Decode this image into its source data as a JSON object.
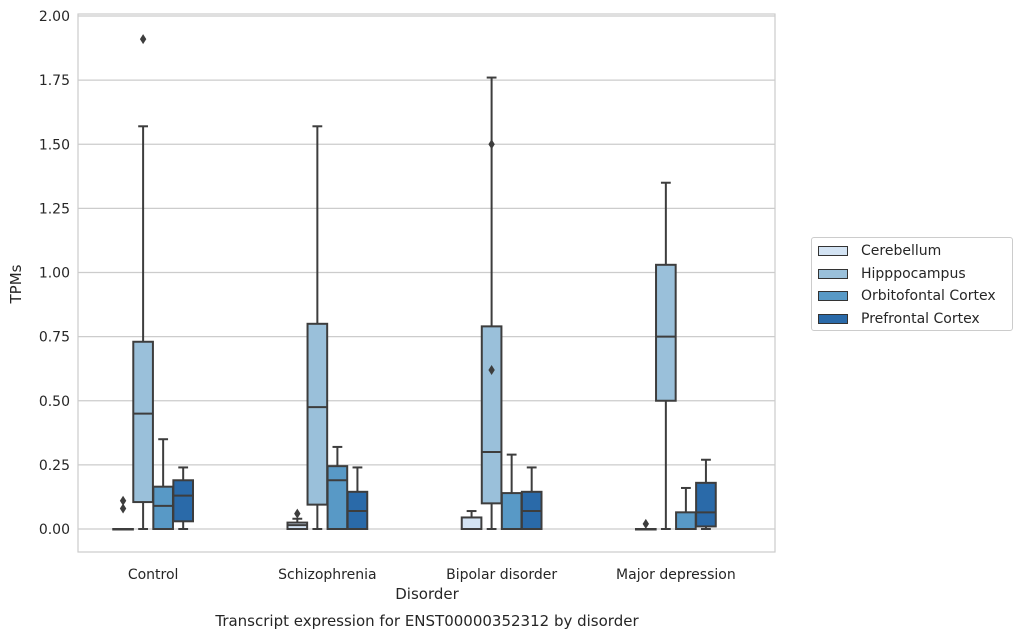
{
  "chart_data": {
    "type": "box",
    "title": "Transcript expression for ENST00000352312 by disorder",
    "xlabel": "Disorder",
    "ylabel": "TPMs",
    "ylim": [
      -0.09,
      2.0
    ],
    "yticks": [
      "0.00",
      "0.25",
      "0.50",
      "0.75",
      "1.00",
      "1.25",
      "1.50",
      "1.75",
      "2.00"
    ],
    "grid": true,
    "legend_position": "right",
    "categories": [
      "Control",
      "Schizophrenia",
      "Bipolar disorder",
      "Major depression"
    ],
    "series": [
      {
        "name": "Cerebellum",
        "color": "#d3e3f3",
        "boxes": [
          {
            "whislo": 0,
            "q1": 0,
            "med": 0,
            "q3": 0,
            "whishi": 0,
            "fliers": [
              0.08,
              0.11
            ]
          },
          {
            "whislo": 0,
            "q1": 0,
            "med": 0.015,
            "q3": 0.025,
            "whishi": 0.04,
            "fliers": [
              0.06
            ]
          },
          {
            "whislo": 0,
            "q1": 0,
            "med": 0,
            "q3": 0.045,
            "whishi": 0.07,
            "fliers": []
          },
          {
            "whislo": 0,
            "q1": 0,
            "med": 0,
            "q3": 0,
            "whishi": 0,
            "fliers": [
              0.02
            ]
          }
        ]
      },
      {
        "name": "Hipppocampus",
        "color": "#9ac0da",
        "boxes": [
          {
            "whislo": 0,
            "q1": 0.105,
            "med": 0.45,
            "q3": 0.73,
            "whishi": 1.57,
            "fliers": [
              1.91
            ]
          },
          {
            "whislo": 0,
            "q1": 0.095,
            "med": 0.475,
            "q3": 0.8,
            "whishi": 1.57,
            "fliers": []
          },
          {
            "whislo": 0,
            "q1": 0.1,
            "med": 0.3,
            "q3": 0.79,
            "whishi": 1.76,
            "fliers": [
              0.62,
              1.5
            ]
          },
          {
            "whislo": 0,
            "q1": 0.5,
            "med": 0.75,
            "q3": 1.03,
            "whishi": 1.35,
            "fliers": []
          }
        ]
      },
      {
        "name": "Orbitofontal Cortex",
        "color": "#5899c6",
        "boxes": [
          {
            "whislo": 0,
            "q1": 0,
            "med": 0.09,
            "q3": 0.165,
            "whishi": 0.35,
            "fliers": []
          },
          {
            "whislo": 0,
            "q1": 0,
            "med": 0.19,
            "q3": 0.245,
            "whishi": 0.32,
            "fliers": []
          },
          {
            "whislo": 0,
            "q1": 0,
            "med": 0,
            "q3": 0.14,
            "whishi": 0.29,
            "fliers": []
          },
          {
            "whislo": 0,
            "q1": 0,
            "med": 0,
            "q3": 0.065,
            "whishi": 0.16,
            "fliers": []
          }
        ]
      },
      {
        "name": "Prefrontal Cortex",
        "color": "#2a6aa9",
        "boxes": [
          {
            "whislo": 0,
            "q1": 0.03,
            "med": 0.13,
            "q3": 0.19,
            "whishi": 0.24,
            "fliers": []
          },
          {
            "whislo": 0,
            "q1": 0,
            "med": 0.07,
            "q3": 0.145,
            "whishi": 0.24,
            "fliers": []
          },
          {
            "whislo": 0,
            "q1": 0,
            "med": 0.07,
            "q3": 0.145,
            "whishi": 0.24,
            "fliers": []
          },
          {
            "whislo": 0,
            "q1": 0.01,
            "med": 0.065,
            "q3": 0.18,
            "whishi": 0.27,
            "fliers": []
          }
        ]
      }
    ]
  }
}
